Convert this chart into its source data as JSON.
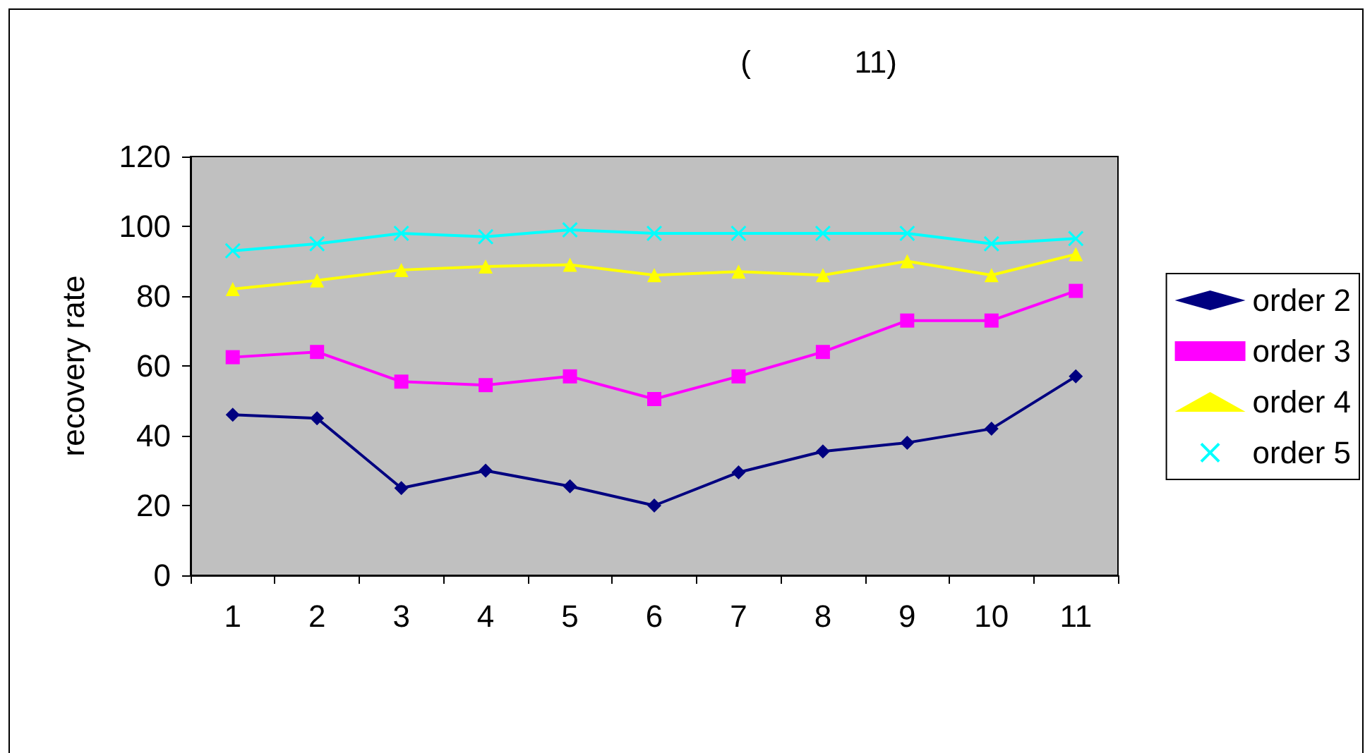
{
  "chart_data": {
    "type": "line",
    "title": "(            11)",
    "ylabel": "recovery rate",
    "categories": [
      "1",
      "2",
      "3",
      "4",
      "5",
      "6",
      "7",
      "8",
      "9",
      "10",
      "11"
    ],
    "series": [
      {
        "name": "order 2",
        "color": "#000080",
        "marker": "diamond",
        "values": [
          46,
          45,
          25,
          30,
          25.5,
          20,
          29.5,
          35.5,
          38,
          42,
          57
        ]
      },
      {
        "name": "order 3",
        "color": "#ff00ff",
        "marker": "square",
        "values": [
          62.5,
          64,
          55.5,
          54.5,
          57,
          50.5,
          57,
          64,
          73,
          73,
          81.5
        ]
      },
      {
        "name": "order 4",
        "color": "#ffff00",
        "marker": "triangle",
        "values": [
          82,
          84.5,
          87.5,
          88.5,
          89,
          86,
          87,
          86,
          90,
          86,
          92
        ]
      },
      {
        "name": "order 5",
        "color": "#00ffff",
        "marker": "cross",
        "values": [
          93,
          95,
          98,
          97,
          99,
          98,
          98,
          98,
          98,
          95,
          96.5
        ]
      }
    ],
    "ylim": [
      0,
      120
    ],
    "yticks": [
      0,
      20,
      40,
      60,
      80,
      100,
      120
    ],
    "grid": false,
    "legend": "right",
    "line_style": "solid"
  }
}
